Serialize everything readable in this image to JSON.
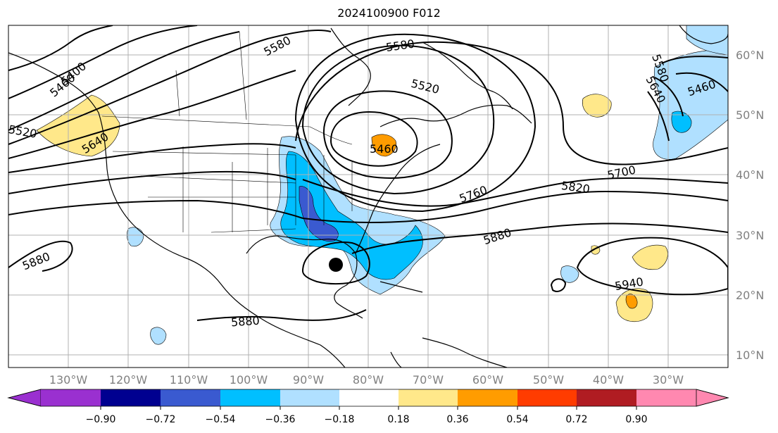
{
  "title": "2024100900 F012",
  "latitude_labels": [
    "60°N",
    "50°N",
    "40°N",
    "30°N",
    "20°N",
    "10°N"
  ],
  "longitude_labels": [
    "130°W",
    "120°W",
    "110°W",
    "100°W",
    "90°W",
    "80°W",
    "70°W",
    "60°W",
    "50°W",
    "40°W",
    "30°W"
  ],
  "contour_labels": [
    {
      "text": "5580"
    },
    {
      "text": "5580"
    },
    {
      "text": "5400"
    },
    {
      "text": "5460"
    },
    {
      "text": "5520"
    },
    {
      "text": "5640"
    },
    {
      "text": "5520"
    },
    {
      "text": "5460"
    },
    {
      "text": "5700"
    },
    {
      "text": "5760"
    },
    {
      "text": "5820"
    },
    {
      "text": "5880"
    },
    {
      "text": "5880"
    },
    {
      "text": "5880"
    },
    {
      "text": "5940"
    },
    {
      "text": "5580"
    },
    {
      "text": "5640"
    },
    {
      "text": "5460"
    }
  ],
  "colorbar": {
    "tick_labels": [
      "−0.90",
      "−0.72",
      "−0.54",
      "−0.36",
      "−0.18",
      "0.18",
      "0.36",
      "0.54",
      "0.72",
      "0.90"
    ],
    "colors": [
      "#9a30d0",
      "#000090",
      "#3a5ad0",
      "#00bfff",
      "#b0e0ff",
      "#ffffff",
      "#ffe88a",
      "#ff9c00",
      "#ff3c00",
      "#b01c22",
      "#ff88b0"
    ]
  },
  "colors": {
    "positive_light": "#ffe88a",
    "positive_mid": "#ff9c00",
    "positive_strong": "#ff3c00",
    "negative_light": "#b0e0ff",
    "negative_mid": "#00bfff",
    "negative_strong": "#3a5ad0"
  }
}
